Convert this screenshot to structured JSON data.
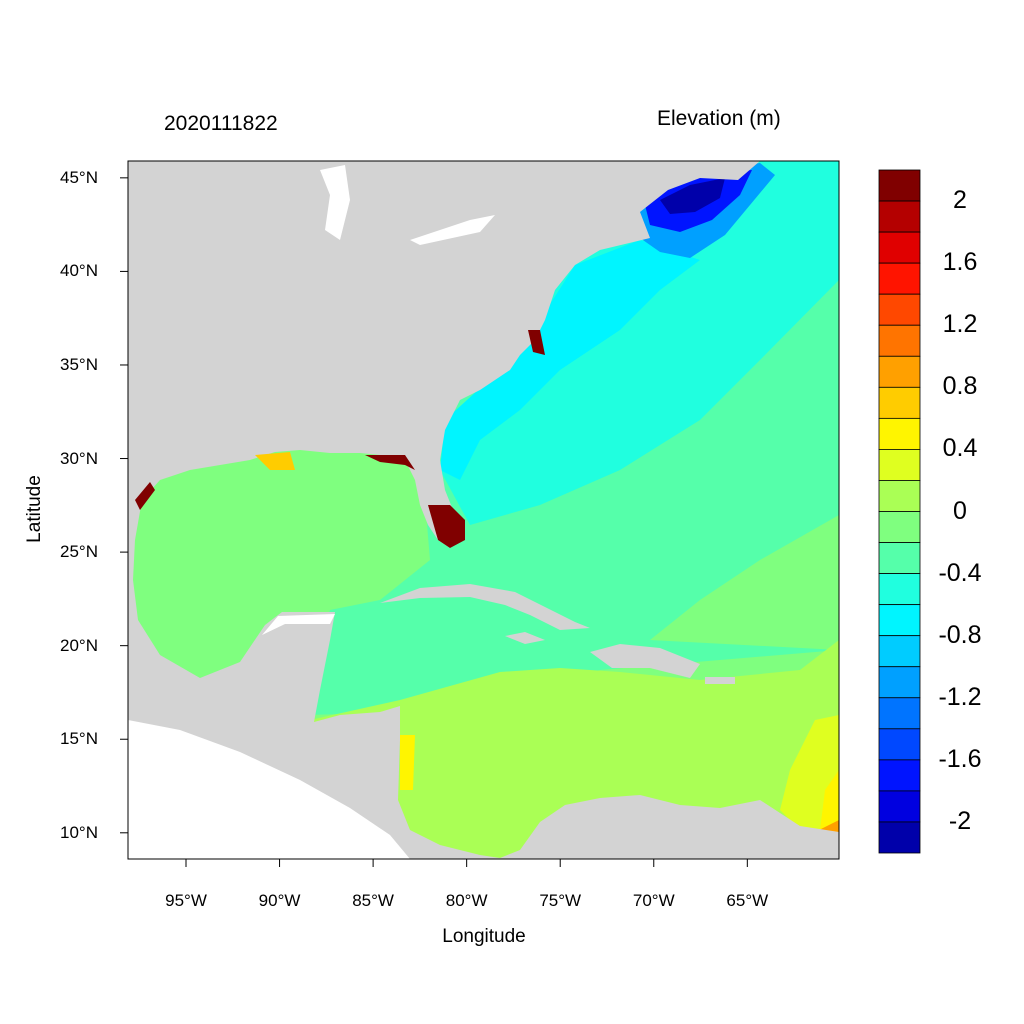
{
  "title_left": "2020111822",
  "title_right": "Elevation (m)",
  "xaxis": {
    "label": "Longitude",
    "ticks": [
      "95°W",
      "90°W",
      "85°W",
      "80°W",
      "75°W",
      "70°W",
      "65°W"
    ],
    "tick_values": [
      -95,
      -90,
      -85,
      -80,
      -75,
      -70,
      -65
    ],
    "range": [
      -98.1,
      -60.1
    ]
  },
  "yaxis": {
    "label": "Latitude",
    "ticks": [
      "45°N",
      "40°N",
      "35°N",
      "30°N",
      "25°N",
      "20°N",
      "15°N",
      "10°N"
    ],
    "tick_values": [
      45,
      40,
      35,
      30,
      25,
      20,
      15,
      10
    ],
    "range": [
      8.6,
      45.9
    ]
  },
  "colorbar": {
    "range": [
      -2.2,
      2.2
    ],
    "step": 0.2,
    "labels": [
      "2",
      "1.6",
      "1.2",
      "0.8",
      "0.4",
      "0",
      "-0.4",
      "-0.8",
      "-1.2",
      "-1.6",
      "-2"
    ],
    "label_values": [
      2,
      1.6,
      1.2,
      0.8,
      0.4,
      0,
      -0.4,
      -0.8,
      -1.2,
      -1.6,
      -2
    ],
    "colors_top_to_bottom": [
      "#800000",
      "#b40000",
      "#e00000",
      "#ff1400",
      "#ff4800",
      "#ff7400",
      "#ffa000",
      "#ffcc00",
      "#fff500",
      "#dfff20",
      "#aaff55",
      "#7fff7f",
      "#55ffaa",
      "#20ffdf",
      "#00f5ff",
      "#00ccff",
      "#00a0ff",
      "#0074ff",
      "#0048ff",
      "#0014ff",
      "#0000e0",
      "#0000aa"
    ]
  },
  "colors": {
    "land": "#d3d3d3",
    "no_data": "#ffffff"
  }
}
